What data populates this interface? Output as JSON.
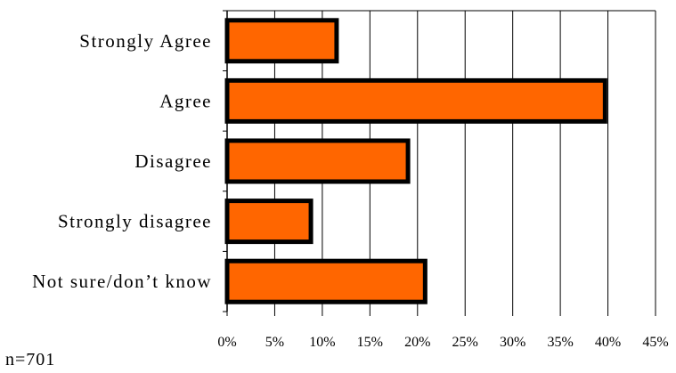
{
  "chart_data": {
    "type": "bar",
    "orientation": "horizontal",
    "categories": [
      "Strongly Agree",
      "Agree",
      "Disagree",
      "Strongly disagree",
      "Not sure/don’t know"
    ],
    "values": [
      11.5,
      39.7,
      19.0,
      8.8,
      20.8
    ],
    "xlim": [
      0,
      45
    ],
    "xticks": [
      "0%",
      "5%",
      "10%",
      "15%",
      "20%",
      "25%",
      "30%",
      "35%",
      "40%",
      "45%"
    ],
    "grid": "vertical",
    "legend": "none",
    "bar_color": "#ff6600",
    "bar_edge_color": "#000000"
  },
  "note": "n=701"
}
